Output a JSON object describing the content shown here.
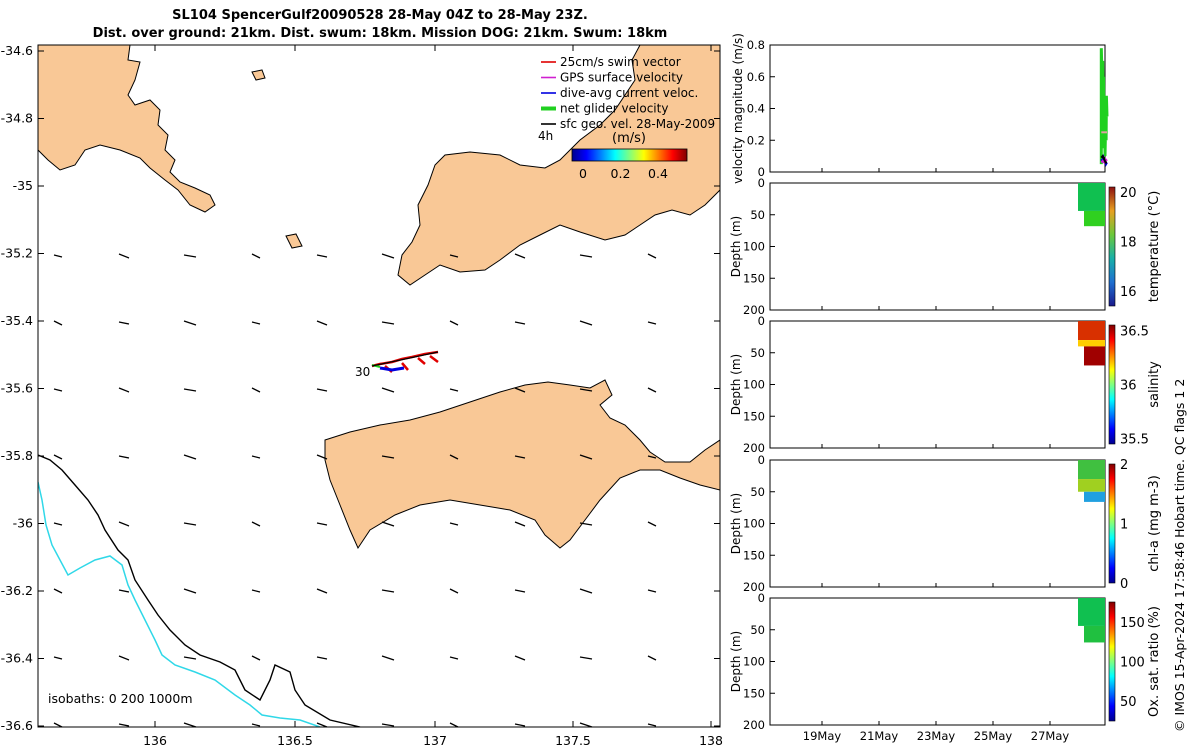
{
  "header": {
    "title_line1": "SL104 SpencerGulf20090528 28-May 04Z to 28-May 23Z.",
    "title_line2": "Dist. over ground: 21km. Dist. swum: 18km. Mission DOG: 21km. Swum: 18km"
  },
  "side_note": "© IMOS 15-Apr-2024 17:58:46 Hobart time. QC flags 1  2",
  "map": {
    "x_ticks": [
      "136",
      "136.5",
      "137",
      "137.5",
      "138"
    ],
    "y_ticks": [
      "-34.6",
      "-34.8",
      "-35",
      "-35.2",
      "-35.4",
      "-35.6",
      "-35.8",
      "-36",
      "-36.2",
      "-36.4",
      "-36.6"
    ],
    "legend": [
      {
        "label": "25cm/s swim vector",
        "color": "#e00000"
      },
      {
        "label": "GPS surface velocity",
        "color": "#d020d0"
      },
      {
        "label": "dive-avg current veloc.",
        "color": "#0000e0"
      },
      {
        "label": "net glider velocity",
        "color": "#20d020"
      },
      {
        "label": "sfc geo. vel. 28-May-2009",
        "color": "#000000"
      }
    ],
    "legend_extra": "4h",
    "colorbar_label": "(m/s)",
    "colorbar_ticks": [
      "0",
      "0.2",
      "0.4"
    ],
    "track_label": "30",
    "isobaths_label": "isobaths: 0   200  1000m",
    "land_color": "#f9c896",
    "isobath_200_color": "#000000",
    "isobath_1000_color": "#30d8e8"
  },
  "chart_data": [
    {
      "type": "line",
      "ylabel": "velocity magnitude (m/s)",
      "ylim": [
        0,
        0.8
      ],
      "y_ticks": [
        "0",
        "0.2",
        "0.4",
        "0.6",
        "0.8"
      ],
      "series": [
        {
          "color": "#20d020",
          "x": [
            28.8,
            28.8,
            28.83,
            28.85,
            28.87,
            28.88,
            28.9,
            28.92,
            28.93,
            28.95,
            28.97,
            28.98,
            29.0
          ],
          "values": [
            0.05,
            0.78,
            0.55,
            0.7,
            0.35,
            0.6,
            0.15,
            0.4,
            0.1,
            0.3,
            0.2,
            0.48,
            0.35
          ]
        },
        {
          "color": "#0000e0",
          "x": [
            28.8,
            28.83,
            28.87,
            28.9,
            28.93,
            28.97,
            29.0
          ],
          "values": [
            0.08,
            0.07,
            0.09,
            0.06,
            0.08,
            0.05,
            0.06
          ]
        },
        {
          "color": "#d020d0",
          "x": [
            28.8,
            28.85,
            28.9,
            28.95,
            29.0
          ],
          "values": [
            0.06,
            0.07,
            0.06,
            0.08,
            0.07
          ]
        },
        {
          "color": "#000000",
          "x": [
            28.8,
            28.85,
            28.9,
            28.95,
            29.0
          ],
          "values": [
            0.09,
            0.1,
            0.08,
            0.06,
            0.06
          ]
        },
        {
          "color": "#e0a0a0",
          "x": [
            28.8,
            29.0
          ],
          "values": [
            0.25,
            0.25
          ]
        }
      ]
    },
    {
      "type": "heatmap",
      "ylabel": "Depth (m)",
      "colorbar_label": "temperature (°C)",
      "colorbar_ticks": [
        "16",
        "18",
        "20"
      ],
      "ylim": [
        200,
        0
      ],
      "y_ticks": [
        "0",
        "50",
        "100",
        "150",
        "200"
      ],
      "clim": [
        15.4,
        20.2
      ]
    },
    {
      "type": "heatmap",
      "ylabel": "Depth (m)",
      "colorbar_label": "salinity",
      "colorbar_ticks": [
        "35.5",
        "36",
        "36.5"
      ],
      "ylim": [
        200,
        0
      ],
      "y_ticks": [
        "0",
        "50",
        "100",
        "150",
        "200"
      ],
      "clim": [
        35.45,
        36.55
      ]
    },
    {
      "type": "heatmap",
      "ylabel": "Depth (m)",
      "colorbar_label": "chl-a (mg m-3)",
      "colorbar_ticks": [
        "0",
        "1",
        "2"
      ],
      "ylim": [
        200,
        0
      ],
      "y_ticks": [
        "0",
        "50",
        "100",
        "150",
        "200"
      ],
      "clim": [
        0,
        2
      ]
    },
    {
      "type": "heatmap",
      "ylabel": "Depth (m)",
      "colorbar_label": "Ox. sat. ratio (%)",
      "colorbar_ticks": [
        "50",
        "100",
        "150"
      ],
      "ylim": [
        200,
        0
      ],
      "y_ticks": [
        "0",
        "50",
        "100",
        "150",
        "200"
      ],
      "clim": [
        25,
        175
      ],
      "x_ticks": [
        "19May",
        "21May",
        "23May",
        "25May",
        "27May"
      ]
    }
  ]
}
